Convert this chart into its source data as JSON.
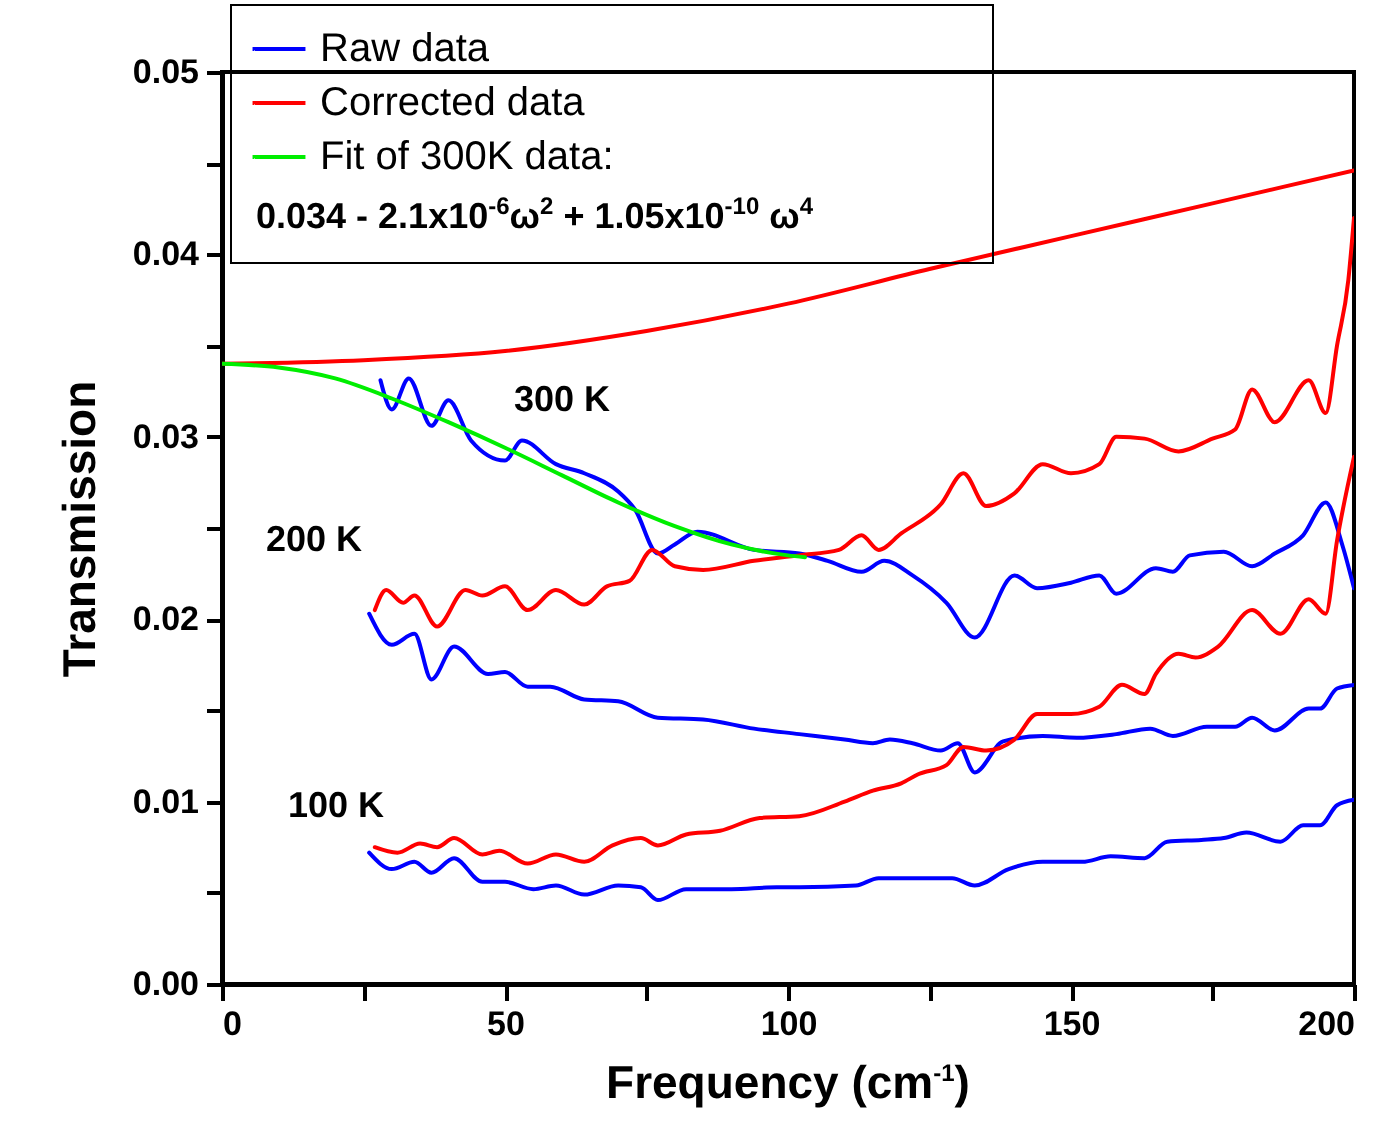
{
  "chart_data": {
    "type": "line",
    "xlabel": "Frequency (cm$^{-1}$)",
    "ylabel": "Transmission",
    "xlim": [
      0,
      200
    ],
    "ylim": [
      0,
      0.05
    ],
    "xticks": [
      0,
      {
        "value": 25,
        "label": null
      },
      50,
      {
        "value": 75,
        "label": null
      },
      100,
      {
        "value": 125,
        "label": null
      },
      150,
      {
        "value": 175,
        "label": null
      },
      200
    ],
    "yticks": [
      {
        "value": 0,
        "label": "0.00"
      },
      {
        "value": 0.005,
        "label": null
      },
      0.01,
      {
        "value": 0.015,
        "label": null
      },
      0.02,
      {
        "value": 0.025,
        "label": null
      },
      0.03,
      {
        "value": 0.035,
        "label": null
      },
      0.04,
      {
        "value": 0.045,
        "label": null
      },
      {
        "value": 0.05,
        "label": "0.05"
      }
    ],
    "grid": false,
    "legend": "top left",
    "line_style": "solid",
    "marker": "none",
    "annotations": [
      "300 K",
      "200 K",
      "100 K",
      "0.034 - 2.1x10$^{-6}$ω$^{2}$ + 1.05x10$^{-10}$ ω$^{4}$"
    ],
    "series": [
      {
        "name": "Raw data",
        "color": "#0000ff",
        "x": [
          28,
          30,
          33,
          37,
          40,
          44,
          50,
          53,
          59,
          64,
          70,
          73,
          77,
          80,
          84,
          94,
          102,
          107,
          113,
          117,
          122,
          128,
          133,
          140,
          144,
          150,
          155,
          158,
          165,
          168,
          171,
          177,
          182,
          186,
          191,
          195,
          198,
          200
        ],
        "values": [
          0.0331,
          0.0315,
          0.0332,
          0.0306,
          0.032,
          0.0298,
          0.0287,
          0.0298,
          0.0285,
          0.028,
          0.027,
          0.026,
          0.0236,
          0.0241,
          0.0248,
          0.0238,
          0.0236,
          0.0232,
          0.0226,
          0.0232,
          0.0224,
          0.0209,
          0.019,
          0.0224,
          0.0217,
          0.022,
          0.0224,
          0.0214,
          0.0228,
          0.0226,
          0.0235,
          0.0237,
          0.0229,
          0.0236,
          0.0246,
          0.0264,
          0.024,
          0.0217
        ]
      },
      {
        "color": "#0000ff",
        "x": [
          26,
          30,
          34,
          37,
          41,
          47,
          50,
          54,
          58,
          64,
          70,
          77,
          85,
          94,
          102,
          110,
          115,
          118,
          122,
          127,
          130,
          133,
          138,
          145,
          151,
          158,
          164,
          168,
          174,
          179,
          182,
          186,
          192,
          194,
          197,
          200
        ],
        "values": [
          0.0203,
          0.0186,
          0.0192,
          0.0167,
          0.0185,
          0.017,
          0.0171,
          0.0163,
          0.0163,
          0.0156,
          0.0155,
          0.0146,
          0.0145,
          0.014,
          0.0137,
          0.0134,
          0.0132,
          0.0134,
          0.0132,
          0.0128,
          0.0132,
          0.0116,
          0.0133,
          0.0136,
          0.0135,
          0.0137,
          0.014,
          0.0136,
          0.0141,
          0.0141,
          0.0146,
          0.0139,
          0.0151,
          0.0151,
          0.0162,
          0.0164
        ]
      },
      {
        "color": "#0000ff",
        "x": [
          26,
          30,
          34,
          37,
          41,
          46,
          50,
          55,
          59,
          64,
          70,
          74,
          77,
          82,
          90,
          98,
          102,
          112,
          116,
          123,
          129,
          133,
          139,
          145,
          152,
          157,
          163,
          167,
          173,
          177,
          181,
          187,
          191,
          194,
          197,
          200
        ],
        "values": [
          0.0072,
          0.0063,
          0.0067,
          0.0061,
          0.0069,
          0.0056,
          0.0056,
          0.0052,
          0.0054,
          0.0049,
          0.0054,
          0.0053,
          0.0046,
          0.0052,
          0.0052,
          0.0053,
          0.0053,
          0.0054,
          0.0058,
          0.0058,
          0.0058,
          0.0054,
          0.0063,
          0.0067,
          0.0067,
          0.007,
          0.0069,
          0.0078,
          0.0079,
          0.008,
          0.0083,
          0.0078,
          0.0087,
          0.0087,
          0.0098,
          0.0101
        ]
      },
      {
        "name": "Corrected data",
        "color": "#ff0000",
        "x": [
          0,
          25,
          50,
          75,
          100,
          125,
          150,
          175,
          200
        ],
        "values": [
          0.034,
          0.0342,
          0.0347,
          0.0358,
          0.0373,
          0.0392,
          0.041,
          0.0428,
          0.0446
        ]
      },
      {
        "color": "#ff0000",
        "x": [
          27,
          29,
          32,
          34,
          38,
          43,
          46,
          50,
          54,
          59,
          64,
          68,
          72,
          76,
          80,
          85,
          94,
          102,
          109,
          113,
          116,
          120,
          127,
          131,
          135,
          140,
          145,
          150,
          155,
          158,
          163,
          169,
          175,
          179,
          182,
          186,
          192,
          195,
          197,
          199,
          200
        ],
        "values": [
          0.0205,
          0.0216,
          0.0209,
          0.0213,
          0.0196,
          0.0216,
          0.0213,
          0.0218,
          0.0205,
          0.0216,
          0.0208,
          0.0218,
          0.0221,
          0.0238,
          0.0229,
          0.0227,
          0.0232,
          0.0235,
          0.0238,
          0.0246,
          0.0238,
          0.0247,
          0.0263,
          0.028,
          0.0262,
          0.0269,
          0.0285,
          0.028,
          0.0285,
          0.03,
          0.0299,
          0.0292,
          0.0299,
          0.0304,
          0.0326,
          0.0308,
          0.0331,
          0.0313,
          0.035,
          0.0386,
          0.042
        ]
      },
      {
        "color": "#ff0000",
        "x": [
          27,
          31,
          35,
          38,
          41,
          46,
          49,
          54,
          59,
          64,
          69,
          74,
          77,
          82,
          88,
          95,
          102,
          110,
          115,
          120,
          123,
          128,
          131,
          135,
          140,
          144,
          150,
          155,
          159,
          163,
          165,
          169,
          172,
          176,
          182,
          187,
          192,
          195,
          197,
          200
        ],
        "values": [
          0.0075,
          0.0072,
          0.0077,
          0.0075,
          0.008,
          0.0071,
          0.0073,
          0.0066,
          0.0071,
          0.0067,
          0.0076,
          0.008,
          0.0076,
          0.0082,
          0.0084,
          0.0091,
          0.0092,
          0.01,
          0.0106,
          0.011,
          0.0115,
          0.012,
          0.013,
          0.0128,
          0.0134,
          0.0148,
          0.0148,
          0.0152,
          0.0164,
          0.0159,
          0.017,
          0.0181,
          0.0179,
          0.0185,
          0.0205,
          0.0192,
          0.0211,
          0.0203,
          0.0243,
          0.0289
        ]
      },
      {
        "name": "Fit of 300K data:",
        "color": "#00ee00",
        "x": [
          0,
          10,
          20,
          30,
          40,
          50,
          60,
          70,
          80,
          90,
          100,
          103
        ],
        "values": [
          0.034,
          0.0338,
          0.0332,
          0.0321,
          0.0308,
          0.0294,
          0.0279,
          0.0264,
          0.0251,
          0.0241,
          0.0235,
          0.0234
        ]
      }
    ]
  }
}
